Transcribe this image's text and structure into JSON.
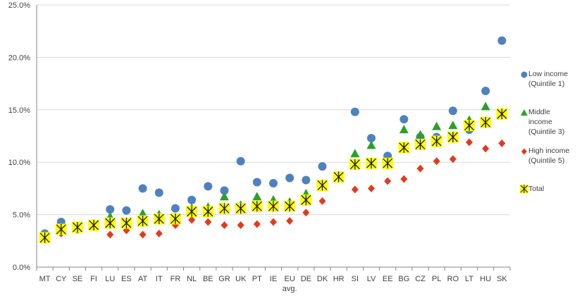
{
  "chart_data": {
    "type": "scatter",
    "categories": [
      "MT",
      "CY",
      "SE",
      "FI",
      "LU",
      "ES",
      "AT",
      "IT",
      "FR",
      "NL",
      "BE",
      "GR",
      "UK",
      "PT",
      "IE",
      "EU",
      "DE",
      "DK",
      "HR",
      "SI",
      "LV",
      "EE",
      "BG",
      "CZ",
      "PL",
      "RO",
      "LT",
      "HU",
      "SK"
    ],
    "category_sublabels": {
      "EU": "avg."
    },
    "y_ticks": [
      "0.0%",
      "5.0%",
      "10.0%",
      "15.0%",
      "20.0%",
      "25.0%"
    ],
    "ylim": [
      0,
      25
    ],
    "grid": true,
    "legend_position": "right",
    "series": [
      {
        "name": "Low income (Quintile 1)",
        "legend_lines": [
          "Low income",
          "(Quintile 1)"
        ],
        "marker": "circle",
        "color": "#4f81bd",
        "values": [
          3.2,
          4.3,
          3.6,
          null,
          5.5,
          5.4,
          7.5,
          7.1,
          5.6,
          6.4,
          7.7,
          7.3,
          10.1,
          8.1,
          8.0,
          8.5,
          8.3,
          9.6,
          null,
          14.8,
          12.3,
          10.6,
          14.1,
          12.4,
          12.4,
          14.9,
          13.1,
          16.8,
          21.6
        ]
      },
      {
        "name": "Middle income (Quintile 3)",
        "legend_lines": [
          "Middle",
          "income",
          "(Quintile 3)"
        ],
        "marker": "triangle",
        "color": "#2ca02c",
        "values": [
          null,
          null,
          null,
          null,
          4.8,
          null,
          5.1,
          5.0,
          null,
          5.6,
          5.7,
          6.7,
          5.9,
          6.7,
          6.4,
          6.2,
          7.0,
          null,
          null,
          10.8,
          11.6,
          null,
          13.1,
          12.6,
          13.4,
          13.5,
          14.0,
          15.3,
          null
        ]
      },
      {
        "name": "High income (Quintile 5)",
        "legend_lines": [
          "High income",
          "(Quintile 5)"
        ],
        "marker": "diamond",
        "color": "#e23a1f",
        "values": [
          null,
          3.2,
          null,
          null,
          3.1,
          3.5,
          3.1,
          3.2,
          4.0,
          4.5,
          4.3,
          4.0,
          4.0,
          4.1,
          4.3,
          4.4,
          5.2,
          6.3,
          null,
          7.4,
          7.5,
          8.2,
          8.4,
          9.4,
          10.1,
          10.3,
          11.9,
          11.3,
          11.8
        ]
      },
      {
        "name": "Total",
        "legend_lines": [
          "Total"
        ],
        "marker": "asterisk-box",
        "color": "#ffff00",
        "values": [
          2.8,
          3.6,
          3.8,
          4.0,
          4.2,
          4.2,
          4.4,
          4.6,
          4.6,
          5.3,
          5.3,
          5.6,
          5.6,
          5.8,
          5.8,
          5.8,
          6.4,
          7.8,
          8.6,
          9.8,
          9.9,
          9.9,
          11.4,
          11.7,
          12.0,
          12.4,
          13.5,
          13.8,
          14.6
        ]
      }
    ]
  }
}
